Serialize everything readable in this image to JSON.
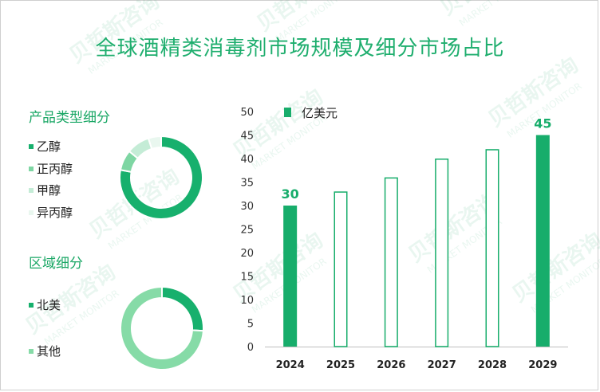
{
  "title": "全球酒精类消毒剂市场规模及细分市场占比",
  "watermark": {
    "cn": "贝哲斯咨询",
    "en": "MARKET MONITOR"
  },
  "colors": {
    "accent": "#17ad6b",
    "title": "#1fae6e",
    "donut1": [
      "#17b06d",
      "#7ed6a3",
      "#c4ecd6",
      "#e9f7ef"
    ],
    "donut2": [
      "#17b06d",
      "#86dba7"
    ]
  },
  "product_section": {
    "title": "产品类型细分",
    "items": [
      {
        "label": "乙醇",
        "share": 0.78
      },
      {
        "label": "正丙醇",
        "share": 0.08
      },
      {
        "label": "甲醇",
        "share": 0.09
      },
      {
        "label": "异丙醇",
        "share": 0.05
      }
    ]
  },
  "region_section": {
    "title": "区域细分",
    "items": [
      {
        "label": "北美",
        "share": 0.26
      },
      {
        "label": "其他",
        "share": 0.74
      }
    ]
  },
  "chart_data": {
    "type": "bar",
    "categories": [
      "2024",
      "2025",
      "2026",
      "2027",
      "2028",
      "2029"
    ],
    "series": [
      {
        "name": "亿美元",
        "values": [
          30,
          33,
          36,
          40,
          42,
          45
        ]
      }
    ],
    "data_labels": {
      "2024": "30",
      "2029": "45"
    },
    "filled": [
      true,
      false,
      false,
      false,
      false,
      true
    ],
    "yticks": [
      "0",
      "5",
      "10",
      "15",
      "20",
      "25",
      "30",
      "35",
      "40",
      "45",
      "50"
    ],
    "ylim": [
      0,
      50
    ],
    "grid": false,
    "legend": "top-left"
  }
}
